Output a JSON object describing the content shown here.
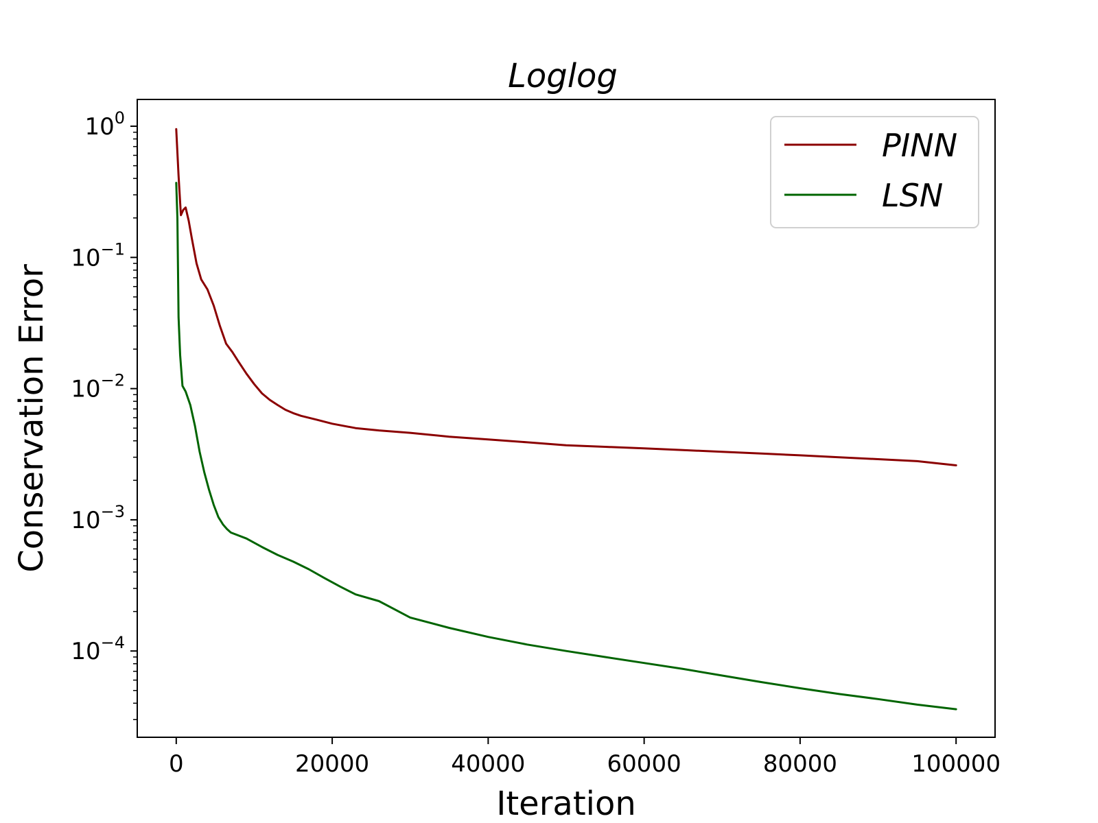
{
  "chart_data": {
    "type": "line",
    "title": "Loglog",
    "xlabel": "Iteration",
    "ylabel": "Conservation Error",
    "xlim": [
      -5000,
      105000
    ],
    "ylim": [
      2.2e-05,
      1.6
    ],
    "yscale": "log",
    "x_ticks": [
      0,
      20000,
      40000,
      60000,
      80000,
      100000
    ],
    "x_tick_labels": [
      "0",
      "20000",
      "40000",
      "60000",
      "80000",
      "100000"
    ],
    "y_ticks": [
      {
        "value": 1,
        "base": "10",
        "exp": "0"
      },
      {
        "value": 0.1,
        "base": "10",
        "exp": "−1"
      },
      {
        "value": 0.01,
        "base": "10",
        "exp": "−2"
      },
      {
        "value": 0.001,
        "base": "10",
        "exp": "−3"
      },
      {
        "value": 0.0001,
        "base": "10",
        "exp": "−4"
      }
    ],
    "legend_position": "top-right",
    "grid": false,
    "series": [
      {
        "name": "PINN",
        "color": "#8b0000",
        "x": [
          0,
          300,
          600,
          900,
          1200,
          1600,
          2000,
          2600,
          3200,
          4000,
          4800,
          5600,
          6400,
          7200,
          8000,
          9000,
          10000,
          11000,
          12000,
          13000,
          14000,
          15000,
          16000,
          18000,
          20000,
          23000,
          26000,
          30000,
          35000,
          40000,
          45000,
          50000,
          55000,
          60000,
          65000,
          70000,
          75000,
          80000,
          85000,
          90000,
          95000,
          100000
        ],
        "y": [
          0.95,
          0.42,
          0.21,
          0.23,
          0.24,
          0.19,
          0.14,
          0.09,
          0.068,
          0.057,
          0.043,
          0.03,
          0.022,
          0.019,
          0.016,
          0.013,
          0.0108,
          0.0092,
          0.0082,
          0.0075,
          0.0069,
          0.0065,
          0.0062,
          0.0058,
          0.0054,
          0.005,
          0.0048,
          0.0046,
          0.0043,
          0.0041,
          0.0039,
          0.0037,
          0.0036,
          0.0035,
          0.0034,
          0.0033,
          0.0032,
          0.0031,
          0.003,
          0.0029,
          0.0028,
          0.0026
        ]
      },
      {
        "name": "LSN",
        "color": "#006400",
        "x": [
          0,
          150,
          300,
          500,
          800,
          1200,
          1800,
          2400,
          3000,
          3600,
          4200,
          4800,
          5400,
          6000,
          6500,
          7000,
          9000,
          11000,
          13000,
          15000,
          17000,
          19000,
          21000,
          23000,
          26000,
          30000,
          35000,
          40000,
          45000,
          50000,
          55000,
          60000,
          65000,
          70000,
          75000,
          80000,
          85000,
          90000,
          95000,
          100000
        ],
        "y": [
          0.37,
          0.2,
          0.035,
          0.018,
          0.0105,
          0.0095,
          0.0075,
          0.0052,
          0.0033,
          0.0023,
          0.0017,
          0.0013,
          0.00105,
          0.00092,
          0.00085,
          0.0008,
          0.00072,
          0.00062,
          0.00054,
          0.00048,
          0.00042,
          0.00036,
          0.00031,
          0.00027,
          0.00024,
          0.00018,
          0.00015,
          0.000128,
          0.000112,
          0.0001,
          9e-05,
          8.1e-05,
          7.3e-05,
          6.5e-05,
          5.8e-05,
          5.2e-05,
          4.7e-05,
          4.3e-05,
          3.9e-05,
          3.6e-05
        ]
      }
    ]
  }
}
